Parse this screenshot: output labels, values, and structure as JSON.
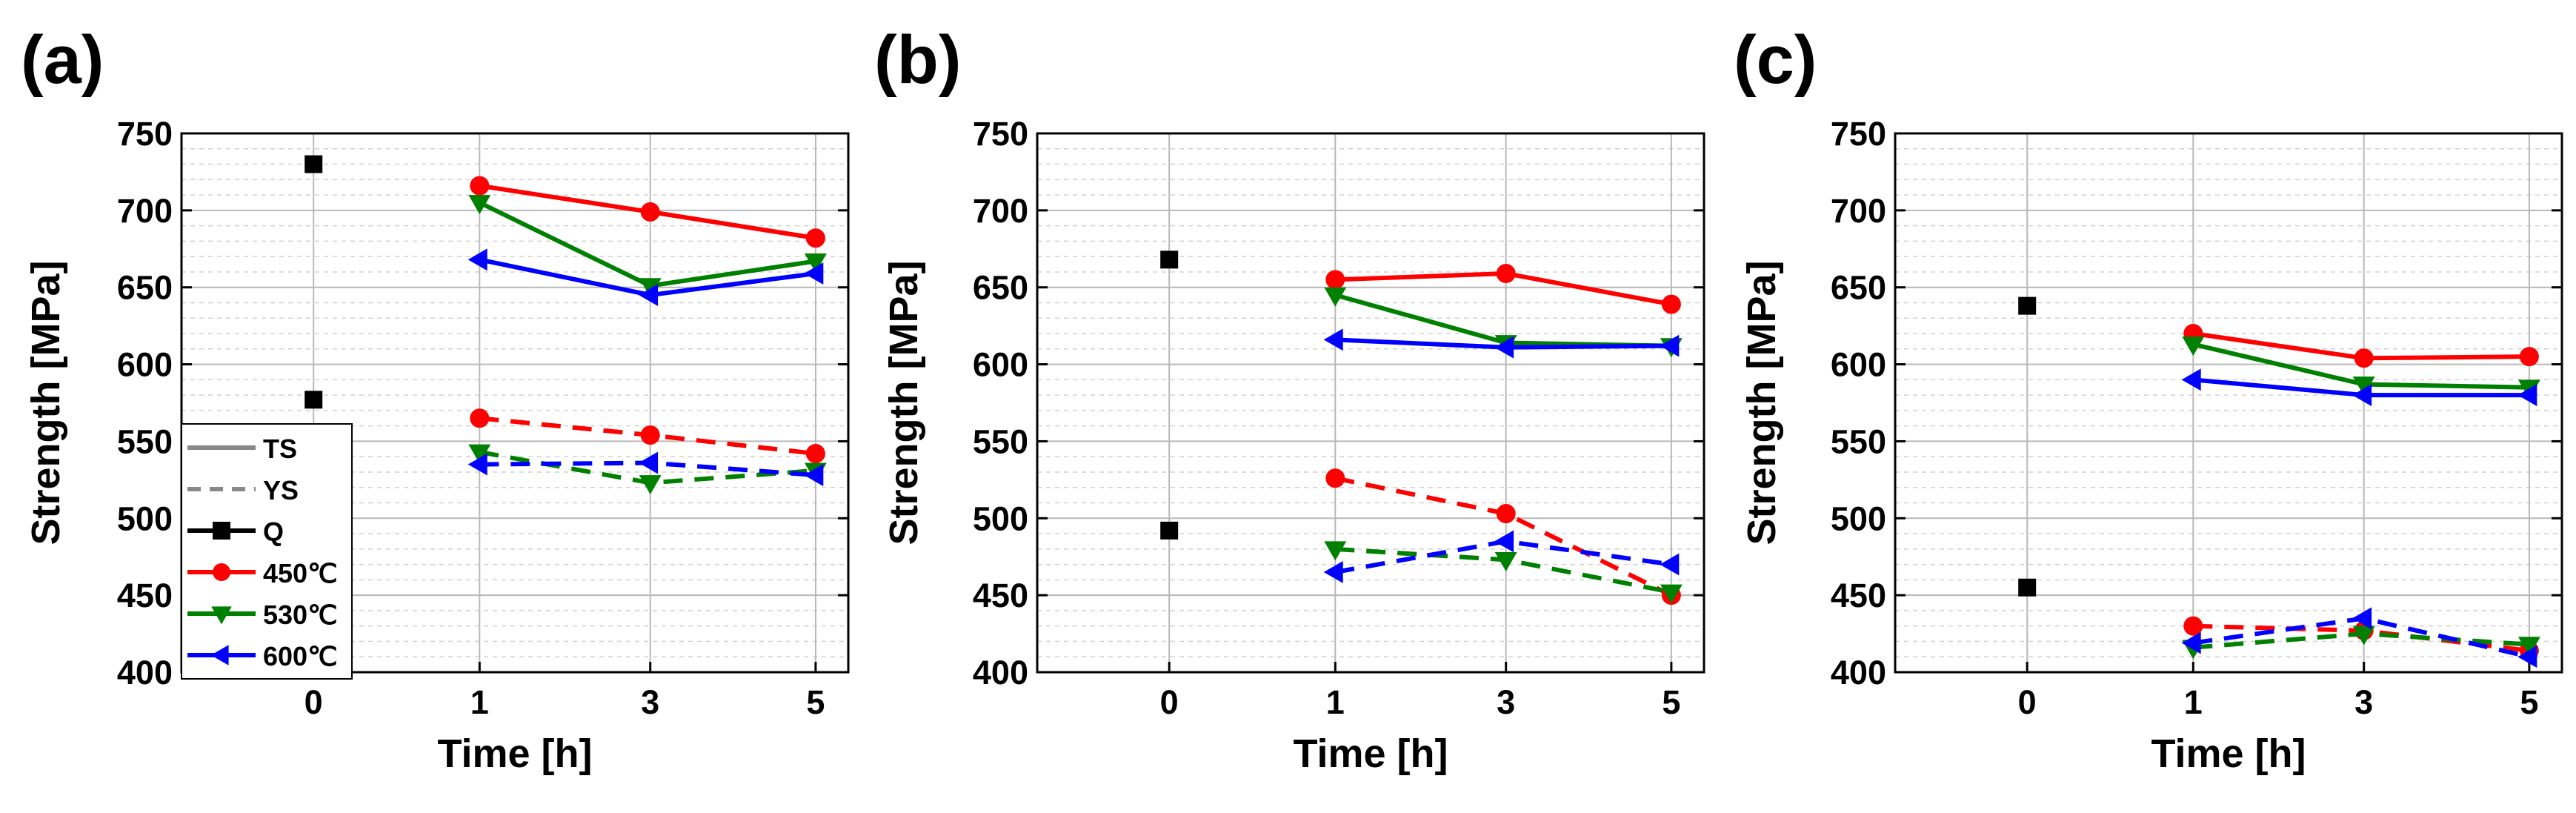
{
  "chart_data": [
    {
      "type": "line",
      "panel_label": "(a)",
      "xlabel": "Time [h]",
      "ylabel": "Strength [MPa]",
      "x_ticks": [
        "0",
        "1",
        "3",
        "5"
      ],
      "y_ticks": [
        "400",
        "450",
        "500",
        "550",
        "600",
        "650",
        "700",
        "750"
      ],
      "ylim": [
        400,
        750
      ],
      "grid": true,
      "legend_position": "bottom-left",
      "legend": [
        {
          "label": "TS",
          "style": "solid",
          "color": "#888888"
        },
        {
          "label": "YS",
          "style": "dashed",
          "color": "#888888"
        },
        {
          "label": "Q",
          "marker": "square",
          "color": "#000000"
        },
        {
          "label": "450℃",
          "marker": "circle",
          "color": "#ff0000"
        },
        {
          "label": "530℃",
          "marker": "triangle-down",
          "color": "#008000"
        },
        {
          "label": "600℃",
          "marker": "triangle-left",
          "color": "#0000ff"
        }
      ],
      "q_points": [
        730,
        577
      ],
      "series": [
        {
          "name": "450℃ TS",
          "color": "#ff0000",
          "dash": false,
          "marker": "circle",
          "values": [
            716,
            699,
            682
          ]
        },
        {
          "name": "530℃ TS",
          "color": "#008000",
          "dash": false,
          "marker": "triangle-down",
          "values": [
            705,
            651,
            667
          ]
        },
        {
          "name": "600℃ TS",
          "color": "#0000ff",
          "dash": false,
          "marker": "triangle-left",
          "values": [
            668,
            645,
            659
          ]
        },
        {
          "name": "450℃ YS",
          "color": "#ff0000",
          "dash": true,
          "marker": "circle",
          "values": [
            565,
            554,
            542
          ]
        },
        {
          "name": "530℃ YS",
          "color": "#008000",
          "dash": true,
          "marker": "triangle-down",
          "values": [
            543,
            523,
            531
          ]
        },
        {
          "name": "600℃ YS",
          "color": "#0000ff",
          "dash": true,
          "marker": "triangle-left",
          "values": [
            535,
            536,
            528
          ]
        }
      ]
    },
    {
      "type": "line",
      "panel_label": "(b)",
      "xlabel": "Time [h]",
      "ylabel": "Strength [MPa]",
      "x_ticks": [
        "0",
        "1",
        "3",
        "5"
      ],
      "y_ticks": [
        "400",
        "450",
        "500",
        "550",
        "600",
        "650",
        "700",
        "750"
      ],
      "ylim": [
        400,
        750
      ],
      "grid": true,
      "legend": [],
      "q_points": [
        668,
        492
      ],
      "series": [
        {
          "name": "450℃ TS",
          "color": "#ff0000",
          "dash": false,
          "marker": "circle",
          "values": [
            655,
            659,
            639
          ]
        },
        {
          "name": "530℃ TS",
          "color": "#008000",
          "dash": false,
          "marker": "triangle-down",
          "values": [
            645,
            614,
            612
          ]
        },
        {
          "name": "600℃ TS",
          "color": "#0000ff",
          "dash": false,
          "marker": "triangle-left",
          "values": [
            616,
            611,
            612
          ]
        },
        {
          "name": "450℃ YS",
          "color": "#ff0000",
          "dash": true,
          "marker": "circle",
          "values": [
            526,
            503,
            450
          ]
        },
        {
          "name": "530℃ YS",
          "color": "#008000",
          "dash": true,
          "marker": "triangle-down",
          "values": [
            480,
            473,
            452
          ]
        },
        {
          "name": "600℃ YS",
          "color": "#0000ff",
          "dash": true,
          "marker": "triangle-left",
          "values": [
            465,
            485,
            470
          ]
        }
      ]
    },
    {
      "type": "line",
      "panel_label": "(c)",
      "xlabel": "Time [h]",
      "ylabel": "Strength [MPa]",
      "x_ticks": [
        "0",
        "1",
        "3",
        "5"
      ],
      "y_ticks": [
        "400",
        "450",
        "500",
        "550",
        "600",
        "650",
        "700",
        "750"
      ],
      "ylim": [
        400,
        750
      ],
      "grid": true,
      "legend": [],
      "q_points": [
        638,
        455
      ],
      "series": [
        {
          "name": "450℃ TS",
          "color": "#ff0000",
          "dash": false,
          "marker": "circle",
          "values": [
            620,
            604,
            605
          ]
        },
        {
          "name": "530℃ TS",
          "color": "#008000",
          "dash": false,
          "marker": "triangle-down",
          "values": [
            613,
            587,
            585
          ]
        },
        {
          "name": "600℃ TS",
          "color": "#0000ff",
          "dash": false,
          "marker": "triangle-left",
          "values": [
            590,
            580,
            580
          ]
        },
        {
          "name": "450℃ YS",
          "color": "#ff0000",
          "dash": true,
          "marker": "circle",
          "values": [
            430,
            427,
            414
          ]
        },
        {
          "name": "530℃ YS",
          "color": "#008000",
          "dash": true,
          "marker": "triangle-down",
          "values": [
            416,
            425,
            418
          ]
        },
        {
          "name": "600℃ YS",
          "color": "#0000ff",
          "dash": true,
          "marker": "triangle-left",
          "values": [
            419,
            435,
            410
          ]
        }
      ]
    }
  ]
}
